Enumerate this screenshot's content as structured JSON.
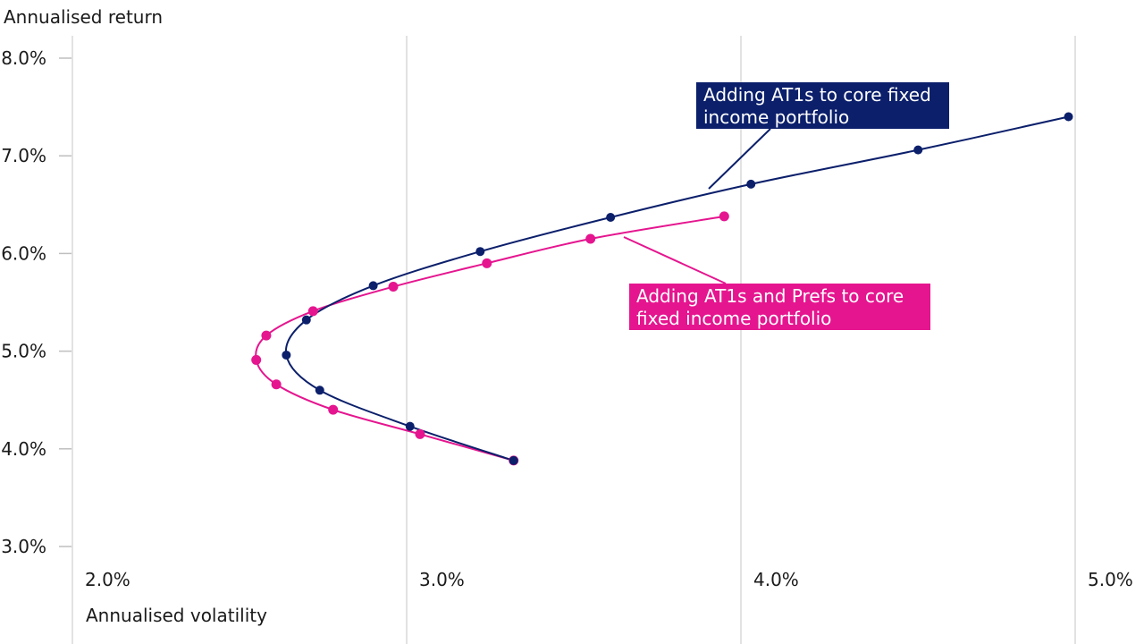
{
  "chart_data": {
    "type": "line",
    "xlabel": "Annualised volatility",
    "ylabel": "Annualised return",
    "xlim": [
      1.95,
      5.0
    ],
    "ylim": [
      2.6,
      8.4
    ],
    "xticks": [
      "2.0%",
      "3.0%",
      "4.0%",
      "5.0%"
    ],
    "xtick_values": [
      2.0,
      3.0,
      4.0,
      5.0
    ],
    "yticks": [
      "3.0%",
      "4.0%",
      "5.0%",
      "6.0%",
      "7.0%",
      "8.0%"
    ],
    "ytick_values": [
      3.0,
      4.0,
      5.0,
      6.0,
      7.0,
      8.0
    ],
    "grid": "vertical",
    "series": [
      {
        "name": "Adding AT1s to core fixed income portfolio",
        "color": "#0b1f6b",
        "points": [
          [
            3.32,
            3.88
          ],
          [
            3.01,
            4.23
          ],
          [
            2.74,
            4.6
          ],
          [
            2.64,
            4.96
          ],
          [
            2.7,
            5.32
          ],
          [
            2.9,
            5.67
          ],
          [
            3.22,
            6.02
          ],
          [
            3.61,
            6.37
          ],
          [
            4.03,
            6.71
          ],
          [
            4.53,
            7.06
          ],
          [
            4.98,
            7.4
          ]
        ]
      },
      {
        "name": "Adding AT1s and Prefs to core fixed income portfolio",
        "color": "#e5158f",
        "points": [
          [
            3.32,
            3.88
          ],
          [
            3.04,
            4.15
          ],
          [
            2.78,
            4.4
          ],
          [
            2.61,
            4.66
          ],
          [
            2.55,
            4.91
          ],
          [
            2.58,
            5.16
          ],
          [
            2.72,
            5.41
          ],
          [
            2.96,
            5.66
          ],
          [
            3.24,
            5.9
          ],
          [
            3.55,
            6.15
          ],
          [
            3.95,
            6.38
          ]
        ]
      }
    ]
  }
}
